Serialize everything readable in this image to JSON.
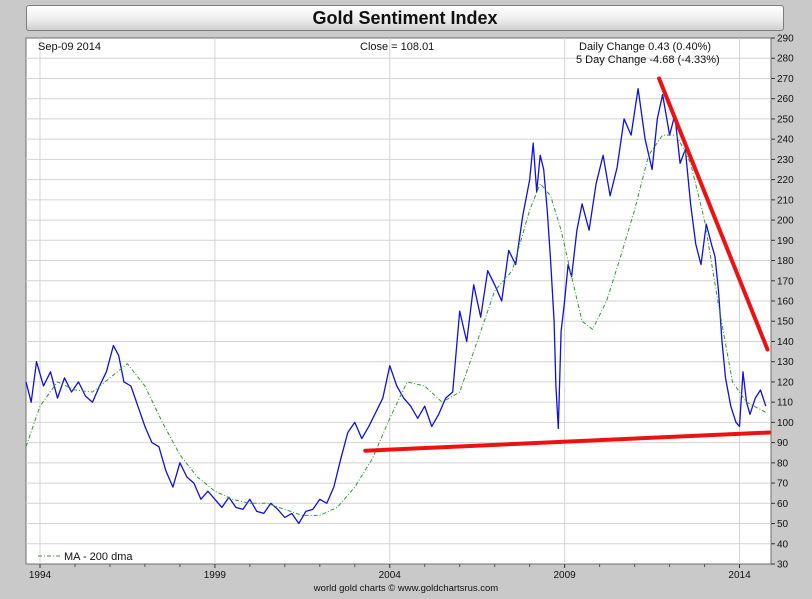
{
  "chart_data": {
    "type": "line",
    "title": "Gold Sentiment Index",
    "header": {
      "date": "Sep-09  2014",
      "close": "Close = 108.01",
      "daily_change": "Daily Change 0.43 (0.40%)",
      "five_day_change": "5 Day Change -4.68 (-4.33%)"
    },
    "xlim": [
      1993.6,
      2014.9
    ],
    "ylim": [
      30,
      290
    ],
    "x_ticks": [
      1994,
      1999,
      2004,
      2009,
      2014
    ],
    "x_tick_labels": [
      "1994",
      "1999",
      "2004",
      "2009",
      "2014"
    ],
    "y_ticks": [
      30,
      40,
      50,
      60,
      70,
      80,
      90,
      100,
      110,
      120,
      130,
      140,
      150,
      160,
      170,
      180,
      190,
      200,
      210,
      220,
      230,
      240,
      250,
      260,
      270,
      280,
      290
    ],
    "y_tick_labels": [
      "30",
      "40",
      "50",
      "60",
      "70",
      "80",
      "90",
      "100",
      "110",
      "120",
      "130",
      "140",
      "150",
      "160",
      "170",
      "180",
      "190",
      "200",
      "210",
      "220",
      "230",
      "240",
      "250",
      "260",
      "270",
      "280",
      "290"
    ],
    "grid": true,
    "series": [
      {
        "name": "Gold Sentiment Index",
        "color": "#1010e0",
        "x": [
          1993.6,
          1993.75,
          1993.9,
          1994.1,
          1994.3,
          1994.5,
          1994.7,
          1994.9,
          1995.1,
          1995.3,
          1995.5,
          1995.7,
          1995.9,
          1996.1,
          1996.25,
          1996.4,
          1996.6,
          1996.8,
          1997.0,
          1997.2,
          1997.4,
          1997.6,
          1997.8,
          1998.0,
          1998.2,
          1998.4,
          1998.6,
          1998.8,
          1999.0,
          1999.2,
          1999.4,
          1999.6,
          1999.8,
          2000.0,
          2000.2,
          2000.4,
          2000.6,
          2000.8,
          2001.0,
          2001.2,
          2001.4,
          2001.6,
          2001.8,
          2002.0,
          2002.2,
          2002.4,
          2002.6,
          2002.8,
          2003.0,
          2003.2,
          2003.4,
          2003.6,
          2003.8,
          2004.0,
          2004.2,
          2004.4,
          2004.6,
          2004.8,
          2005.0,
          2005.2,
          2005.4,
          2005.6,
          2005.8,
          2006.0,
          2006.2,
          2006.4,
          2006.6,
          2006.8,
          2007.0,
          2007.2,
          2007.4,
          2007.6,
          2007.8,
          2008.0,
          2008.1,
          2008.2,
          2008.3,
          2008.4,
          2008.5,
          2008.6,
          2008.7,
          2008.75,
          2008.82,
          2008.9,
          2009.0,
          2009.1,
          2009.2,
          2009.35,
          2009.5,
          2009.7,
          2009.9,
          2010.1,
          2010.3,
          2010.5,
          2010.7,
          2010.9,
          2011.1,
          2011.3,
          2011.5,
          2011.65,
          2011.8,
          2012.0,
          2012.15,
          2012.3,
          2012.45,
          2012.6,
          2012.75,
          2012.9,
          2013.05,
          2013.2,
          2013.3,
          2013.4,
          2013.5,
          2013.6,
          2013.75,
          2013.9,
          2014.0,
          2014.1,
          2014.2,
          2014.3,
          2014.45,
          2014.6,
          2014.75
        ],
        "y": [
          120,
          110,
          130,
          118,
          125,
          112,
          122,
          115,
          120,
          113,
          110,
          118,
          125,
          138,
          133,
          120,
          118,
          108,
          98,
          90,
          88,
          76,
          68,
          80,
          73,
          70,
          62,
          66,
          62,
          58,
          63,
          58,
          57,
          62,
          56,
          55,
          60,
          57,
          53,
          55,
          50,
          56,
          57,
          62,
          60,
          68,
          82,
          95,
          100,
          92,
          98,
          105,
          112,
          128,
          118,
          112,
          108,
          102,
          108,
          98,
          104,
          112,
          115,
          155,
          140,
          168,
          152,
          175,
          168,
          160,
          185,
          178,
          202,
          220,
          238,
          214,
          232,
          225,
          205,
          180,
          150,
          118,
          97,
          145,
          160,
          178,
          172,
          195,
          208,
          195,
          218,
          232,
          212,
          226,
          250,
          242,
          265,
          240,
          225,
          250,
          262,
          242,
          252,
          228,
          235,
          208,
          188,
          178,
          198,
          188,
          182,
          165,
          140,
          122,
          108,
          100,
          98,
          125,
          110,
          104,
          112,
          116,
          108
        ],
        "style": "solid"
      },
      {
        "name": "MA - 200 dma",
        "color": "#2f9a2f",
        "x": [
          1993.6,
          1994.0,
          1994.5,
          1995.0,
          1995.5,
          1996.0,
          1996.5,
          1997.0,
          1997.5,
          1998.0,
          1998.5,
          1999.0,
          1999.5,
          2000.0,
          2000.5,
          2001.0,
          2001.5,
          2002.0,
          2002.5,
          2003.0,
          2003.5,
          2004.0,
          2004.5,
          2005.0,
          2005.5,
          2006.0,
          2006.5,
          2007.0,
          2007.5,
          2008.0,
          2008.3,
          2008.6,
          2008.9,
          2009.2,
          2009.5,
          2009.8,
          2010.2,
          2010.6,
          2011.0,
          2011.4,
          2011.8,
          2012.2,
          2012.6,
          2013.0,
          2013.4,
          2013.8,
          2014.2,
          2014.75
        ],
        "y": [
          88,
          108,
          120,
          116,
          115,
          122,
          129,
          118,
          100,
          84,
          73,
          66,
          62,
          60,
          60,
          57,
          54,
          54,
          58,
          68,
          82,
          102,
          120,
          118,
          110,
          115,
          140,
          165,
          175,
          205,
          218,
          212,
          195,
          172,
          150,
          146,
          160,
          182,
          205,
          232,
          242,
          242,
          228,
          200,
          158,
          120,
          110,
          105
        ],
        "style": "dash-dot"
      }
    ],
    "annotations": [
      {
        "type": "trendline",
        "color": "#ee1111",
        "from": [
          2003.3,
          86
        ],
        "to": [
          2014.85,
          95
        ]
      },
      {
        "type": "trendline",
        "color": "#ee1111",
        "from": [
          2011.7,
          270
        ],
        "to": [
          2014.8,
          136
        ]
      }
    ],
    "legend": {
      "label": "MA - 200 dma",
      "position": "bottom-left"
    },
    "footer": "world gold charts © www.goldchartsrus.com"
  }
}
